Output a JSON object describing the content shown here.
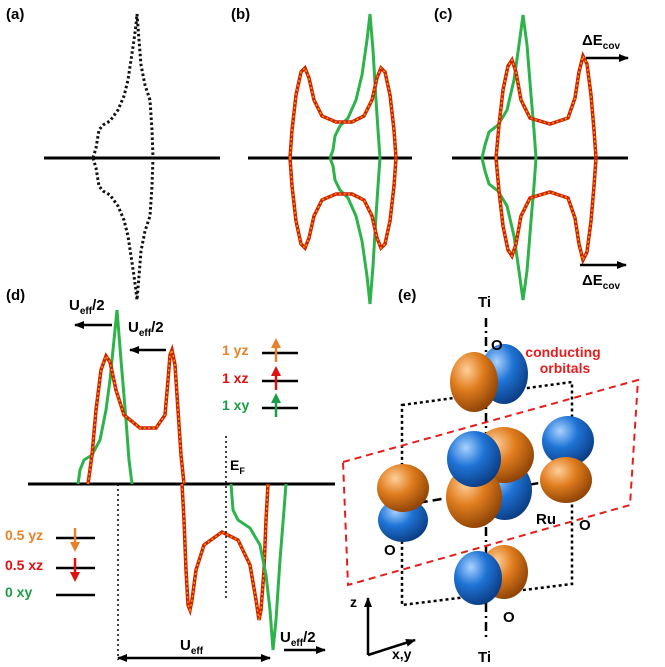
{
  "panels": {
    "a": "(a)",
    "b": "(b)",
    "c": "(c)",
    "d": "(d)",
    "e": "(e)"
  },
  "annotations": {
    "delta_e_main": "ΔE",
    "delta_e_sub": "cov",
    "u_main": "U",
    "u_sub": "eff",
    "u_half_suffix": "/2",
    "ef_main": "E",
    "ef_sub": "F"
  },
  "occupations_up": [
    {
      "label": "1 yz",
      "color": "#e8822a",
      "arrow": "up"
    },
    {
      "label": "1 xz",
      "color": "#e01010",
      "arrow": "up"
    },
    {
      "label": "1 xy",
      "color": "#1a9e45",
      "arrow": "up"
    }
  ],
  "occupations_down": [
    {
      "label": "0.5 yz",
      "color": "#e8822a",
      "arrow": "down"
    },
    {
      "label": "0.5 xz",
      "color": "#e01010",
      "arrow": "down"
    },
    {
      "label": "0 xy",
      "color": "#1a9e45",
      "arrow": "none"
    }
  ],
  "structure": {
    "ti": "Ti",
    "o": "O",
    "ru": "Ru",
    "z_axis": "z",
    "xy_axis": "x,y",
    "conducting_line1": "conducting",
    "conducting_line2": "orbitals"
  },
  "colors": {
    "xy_curve": "#2db34a",
    "xz_curve": "#cc2200",
    "xz_dots": "#ff9900",
    "orbital_orange": "#e07d1e",
    "orbital_blue": "#1f74d6",
    "conducting_box": "#e51d1d"
  }
}
